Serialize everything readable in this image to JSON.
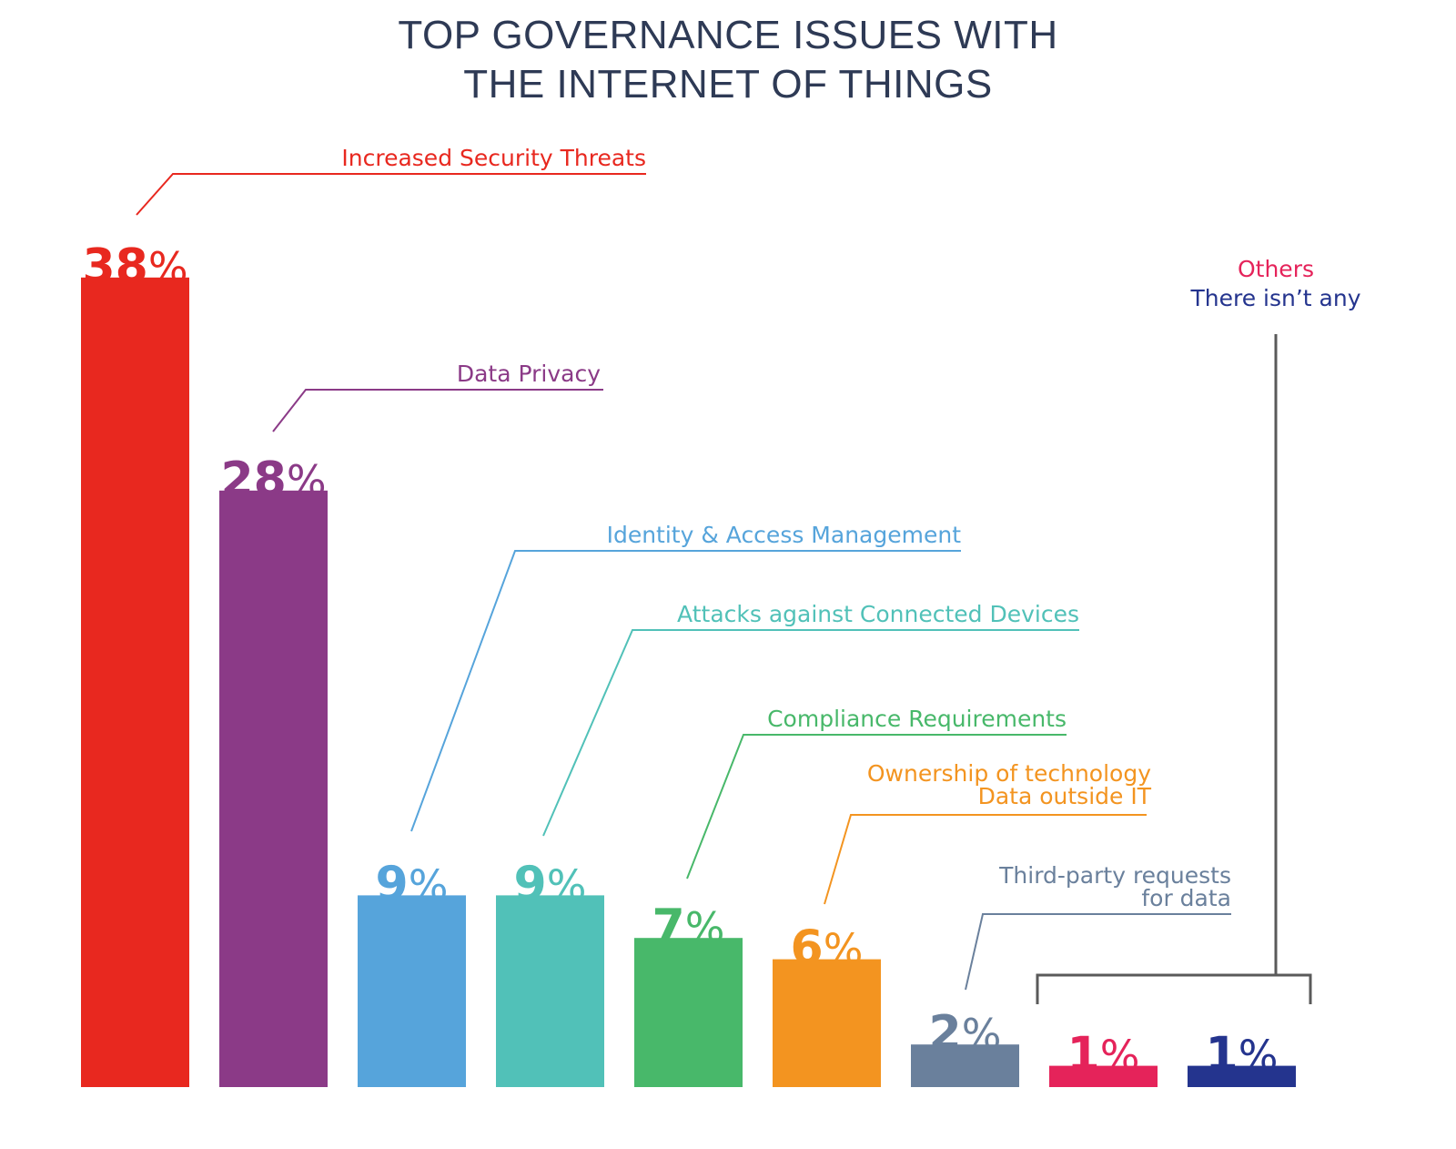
{
  "chart_data": {
    "type": "bar",
    "title_lines": [
      "TOP GOVERNANCE ISSUES WITH",
      "THE INTERNET OF THINGS"
    ],
    "categories": [
      [
        "Increased Security Threats"
      ],
      [
        "Data Privacy"
      ],
      [
        "Identity & Access Management"
      ],
      [
        "Attacks against Connected Devices"
      ],
      [
        "Compliance Requirements"
      ],
      [
        "Ownership of technology",
        "Data outside IT"
      ],
      [
        "Third-party requests",
        "for data"
      ],
      [
        "Others"
      ],
      [
        "There isn’t any"
      ]
    ],
    "values": [
      38,
      28,
      9,
      9,
      7,
      6,
      2,
      1,
      1
    ],
    "value_labels": [
      "38",
      "28",
      "9",
      "9",
      "7",
      "6",
      "2",
      "1",
      "1"
    ],
    "value_suffix": "%",
    "colors": [
      "#e8281f",
      "#8b3a87",
      "#56a4db",
      "#51c1b8",
      "#48b86a",
      "#f39420",
      "#6a809c",
      "#e5235a",
      "#24348e"
    ],
    "grid": false,
    "legend": "none"
  }
}
